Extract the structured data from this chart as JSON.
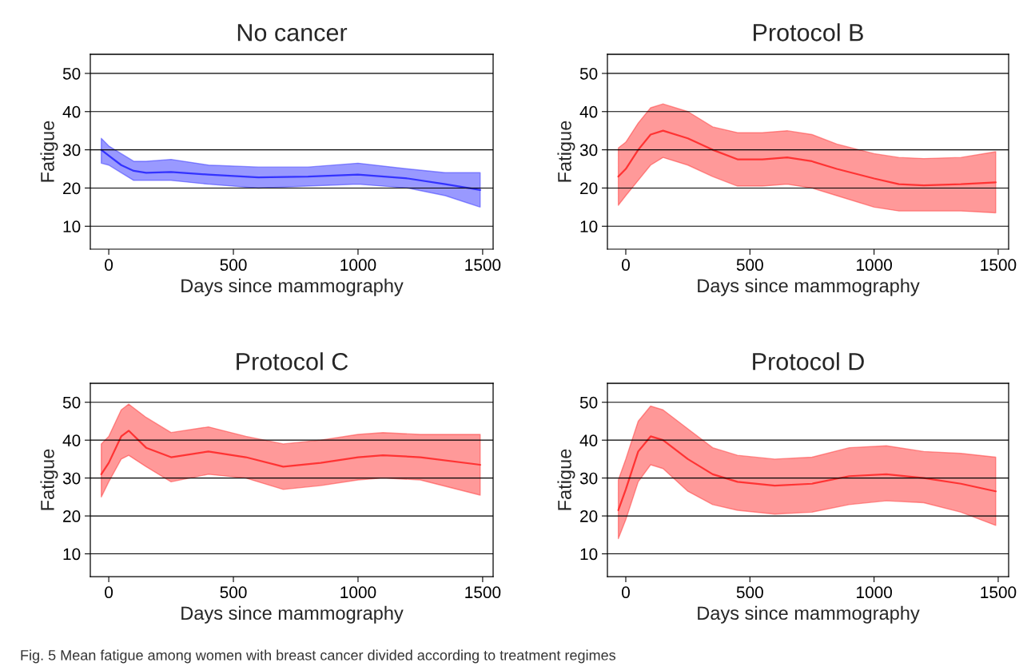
{
  "chart_data": [
    {
      "type": "line",
      "title": "No cancer",
      "xlabel": "Days since mammography",
      "ylabel": "Fatigue",
      "xlim": [
        -74,
        1542
      ],
      "ylim": [
        4,
        55
      ],
      "xticks": [
        0,
        500,
        1000,
        1500
      ],
      "yticks": [
        10,
        20,
        30,
        40,
        50
      ],
      "grid": "y",
      "series": [
        {
          "color": "#3333ff",
          "x": [
            -30,
            0,
            50,
            100,
            150,
            250,
            400,
            600,
            800,
            1000,
            1200,
            1350,
            1490
          ],
          "values": [
            30,
            28.5,
            26,
            24.5,
            24,
            24.2,
            23.5,
            22.8,
            23,
            23.5,
            22.5,
            21,
            19.5
          ],
          "lower": [
            26.5,
            26,
            24,
            22,
            22,
            22,
            21,
            20,
            20.5,
            21,
            20,
            18,
            15
          ],
          "upper": [
            33,
            31,
            29,
            27,
            27,
            27.5,
            26,
            25.5,
            25.5,
            26.5,
            25,
            24,
            24
          ]
        }
      ]
    },
    {
      "type": "line",
      "title": "Protocol B",
      "xlabel": "Days since mammography",
      "ylabel": "Fatigue",
      "xlim": [
        -74,
        1542
      ],
      "ylim": [
        4,
        55
      ],
      "xticks": [
        0,
        500,
        1000,
        1500
      ],
      "yticks": [
        10,
        20,
        30,
        40,
        50
      ],
      "grid": "y",
      "series": [
        {
          "color": "#ff3333",
          "x": [
            -30,
            0,
            50,
            100,
            150,
            250,
            350,
            450,
            550,
            650,
            750,
            850,
            1000,
            1100,
            1200,
            1350,
            1490
          ],
          "values": [
            23,
            25,
            30,
            34,
            35,
            33,
            30,
            27.5,
            27.5,
            28,
            27,
            25,
            22.5,
            21,
            20.7,
            21,
            21.5
          ],
          "lower": [
            15.5,
            18,
            22,
            26,
            28,
            26,
            23,
            20.5,
            20.5,
            21,
            20,
            18,
            15,
            14,
            14,
            14,
            13.5
          ],
          "upper": [
            30.5,
            32,
            37,
            41,
            42,
            40,
            36,
            34.5,
            34.5,
            35,
            34,
            31.5,
            29,
            28,
            27.7,
            28,
            29.5
          ]
        }
      ]
    },
    {
      "type": "line",
      "title": "Protocol C",
      "xlabel": "Days since mammography",
      "ylabel": "Fatigue",
      "xlim": [
        -74,
        1542
      ],
      "ylim": [
        4,
        55
      ],
      "xticks": [
        0,
        500,
        1000,
        1500
      ],
      "yticks": [
        10,
        20,
        30,
        40,
        50
      ],
      "grid": "y",
      "series": [
        {
          "color": "#ff3333",
          "x": [
            -30,
            0,
            50,
            80,
            150,
            250,
            400,
            550,
            700,
            850,
            1000,
            1100,
            1250,
            1490
          ],
          "values": [
            31,
            34,
            41,
            42.5,
            38,
            35.5,
            37,
            35.5,
            33,
            34,
            35.5,
            36,
            35.5,
            33.5
          ],
          "lower": [
            25,
            29,
            35,
            36,
            33,
            29,
            31,
            30,
            27,
            28,
            29.5,
            30,
            29.5,
            25.5
          ],
          "upper": [
            39,
            41,
            48,
            49.5,
            46,
            42,
            43.5,
            41,
            39,
            40,
            41.5,
            42,
            41.5,
            41.5
          ]
        }
      ]
    },
    {
      "type": "line",
      "title": "Protocol D",
      "xlabel": "Days since mammography",
      "ylabel": "Fatigue",
      "xlim": [
        -74,
        1542
      ],
      "ylim": [
        4,
        55
      ],
      "xticks": [
        0,
        500,
        1000,
        1500
      ],
      "yticks": [
        10,
        20,
        30,
        40,
        50
      ],
      "grid": "y",
      "annotations": [
        "Fig. 5 Mean fatigue among women with breast cancer divided according to treatment regimes"
      ],
      "series": [
        {
          "color": "#ff3333",
          "x": [
            -30,
            0,
            50,
            100,
            150,
            250,
            350,
            450,
            600,
            750,
            900,
            1050,
            1200,
            1350,
            1490
          ],
          "values": [
            21.5,
            27,
            37,
            41,
            40,
            35,
            31,
            29,
            28,
            28.5,
            30.5,
            31,
            30,
            28.5,
            26.5
          ],
          "lower": [
            14,
            19,
            29,
            33.5,
            32.5,
            26.5,
            23,
            21.5,
            20.5,
            21,
            23,
            24,
            23.5,
            21,
            17.5
          ],
          "upper": [
            29.5,
            35,
            45,
            49,
            48,
            43,
            38,
            36,
            35,
            35.5,
            38,
            38.5,
            37,
            36.5,
            35.5
          ]
        }
      ]
    }
  ]
}
